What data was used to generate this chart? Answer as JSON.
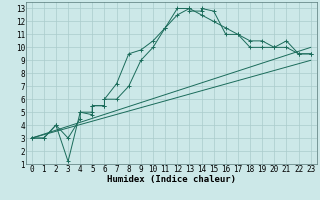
{
  "bg_color": "#cce8e8",
  "grid_color": "#aacccc",
  "line_color": "#1a6b5a",
  "xlabel": "Humidex (Indice chaleur)",
  "xlim": [
    -0.5,
    23.5
  ],
  "ylim": [
    1,
    13.5
  ],
  "xticks": [
    0,
    1,
    2,
    3,
    4,
    5,
    6,
    7,
    8,
    9,
    10,
    11,
    12,
    13,
    14,
    15,
    16,
    17,
    18,
    19,
    20,
    21,
    22,
    23
  ],
  "yticks": [
    1,
    2,
    3,
    4,
    5,
    6,
    7,
    8,
    9,
    10,
    11,
    12,
    13
  ],
  "curve1_x": [
    0,
    1,
    2,
    3,
    4,
    5,
    5,
    6,
    6,
    7,
    8,
    9,
    10,
    11,
    12,
    13,
    13,
    14,
    14,
    15,
    16,
    17,
    18,
    19,
    20,
    21,
    22,
    23
  ],
  "curve1_y": [
    3,
    3,
    4,
    1.2,
    5,
    4.8,
    5.5,
    5.5,
    6,
    7.2,
    9.5,
    9.8,
    10.5,
    11.5,
    13,
    13,
    12.8,
    12.8,
    13,
    12.8,
    11,
    11,
    10.5,
    10.5,
    10,
    10.5,
    9.5,
    9.5
  ],
  "curve2_x": [
    0,
    1,
    2,
    3,
    4,
    4,
    5,
    5,
    6,
    6,
    7,
    8,
    9,
    10,
    11,
    12,
    13,
    14,
    15,
    16,
    17,
    18,
    19,
    20,
    21,
    22,
    23
  ],
  "curve2_y": [
    3,
    3,
    4,
    3,
    4.5,
    5,
    5,
    5.5,
    5.5,
    6,
    6,
    7,
    9,
    10,
    11.5,
    12.5,
    13,
    12.5,
    12,
    11.5,
    11,
    10,
    10,
    10,
    10,
    9.5,
    9.5
  ],
  "line1_x": [
    0,
    23
  ],
  "line1_y": [
    3.0,
    10.0
  ],
  "line2_x": [
    0,
    23
  ],
  "line2_y": [
    3.0,
    9.0
  ],
  "fontsize_label": 6.5,
  "fontsize_tick": 5.5
}
